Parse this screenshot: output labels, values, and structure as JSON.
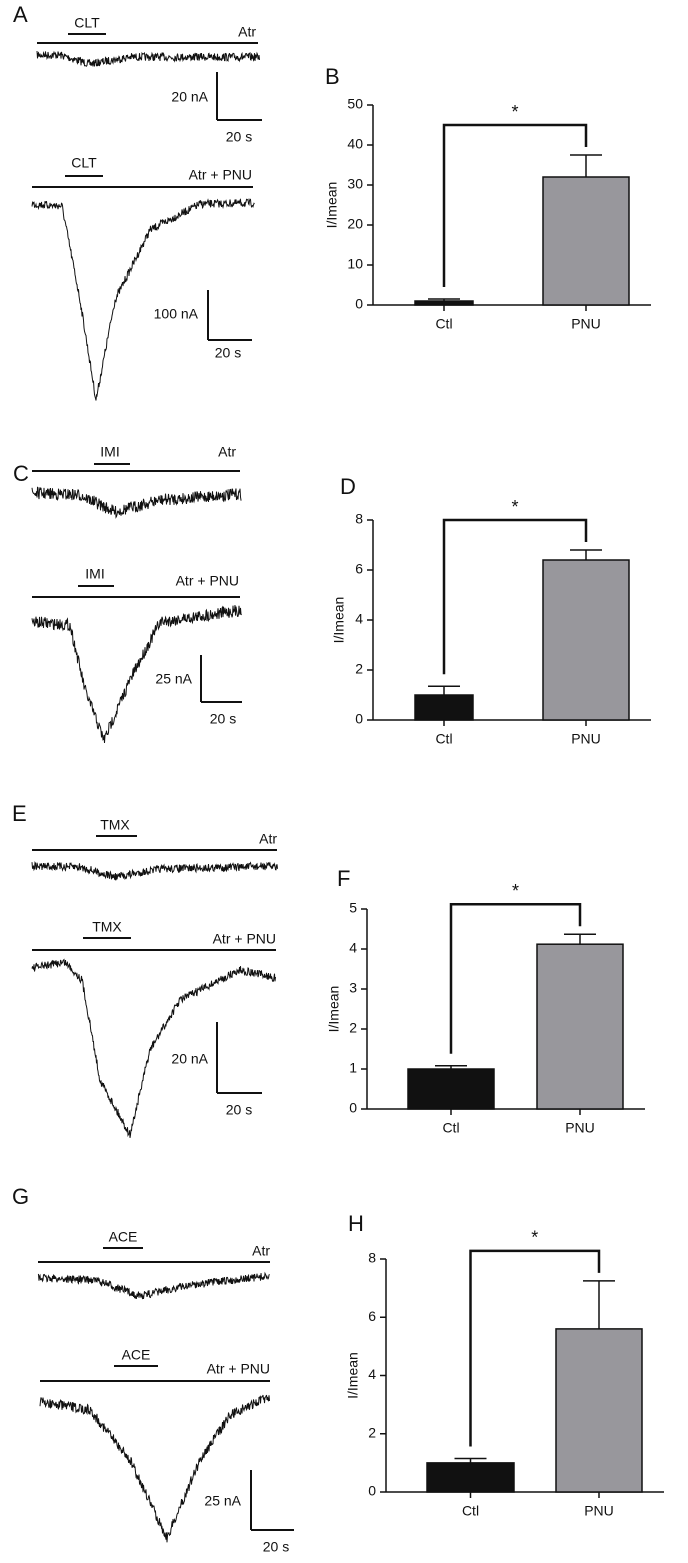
{
  "panels": [
    {
      "label": "A",
      "traces": [
        {
          "drug": "CLT",
          "condition": "Atr"
        },
        {
          "drug": "CLT",
          "condition": "Atr + PNU"
        }
      ],
      "scales": [
        {
          "current": "20 nA",
          "time": "20 s"
        },
        {
          "current": "100 nA",
          "time": "20 s"
        }
      ]
    },
    {
      "label": "C",
      "traces": [
        {
          "drug": "IMI",
          "condition": "Atr"
        },
        {
          "drug": "IMI",
          "condition": "Atr + PNU"
        }
      ],
      "scales": [
        {
          "current": "25 nA",
          "time": "20 s"
        }
      ]
    },
    {
      "label": "E",
      "traces": [
        {
          "drug": "TMX",
          "condition": "Atr"
        },
        {
          "drug": "TMX",
          "condition": "Atr + PNU"
        }
      ],
      "scales": [
        {
          "current": "20 nA",
          "time": "20 s"
        }
      ]
    },
    {
      "label": "G",
      "traces": [
        {
          "drug": "ACE",
          "condition": "Atr"
        },
        {
          "drug": "ACE",
          "condition": "Atr + PNU"
        }
      ],
      "scales": [
        {
          "current": "25 nA",
          "time": "20 s"
        }
      ]
    }
  ],
  "chart_data": [
    {
      "type": "bar",
      "label": "B",
      "ylabel": "I/Imean",
      "categories": [
        "Ctl",
        "PNU"
      ],
      "values": [
        1,
        32
      ],
      "errors": [
        0.5,
        5.5
      ],
      "colors": [
        "#111111",
        "#98979c"
      ],
      "ylim": [
        0,
        50
      ],
      "yticks": [
        0,
        10,
        20,
        30,
        40,
        50
      ],
      "annotation": "*"
    },
    {
      "type": "bar",
      "label": "D",
      "ylabel": "I/Imean",
      "categories": [
        "Ctl",
        "PNU"
      ],
      "values": [
        1,
        6.4
      ],
      "errors": [
        0.35,
        0.4
      ],
      "colors": [
        "#111111",
        "#98979c"
      ],
      "ylim": [
        0,
        8
      ],
      "yticks": [
        0,
        2,
        4,
        6,
        8
      ],
      "annotation": "*"
    },
    {
      "type": "bar",
      "label": "F",
      "ylabel": "I/Imean",
      "categories": [
        "Ctl",
        "PNU"
      ],
      "values": [
        1,
        4.12
      ],
      "errors": [
        0.08,
        0.25
      ],
      "colors": [
        "#111111",
        "#98979c"
      ],
      "ylim": [
        0,
        5
      ],
      "yticks": [
        0,
        1,
        2,
        3,
        4,
        5
      ],
      "annotation": "*"
    },
    {
      "type": "bar",
      "label": "H",
      "ylabel": "I/Imean",
      "categories": [
        "Ctl",
        "PNU"
      ],
      "values": [
        1,
        5.6
      ],
      "errors": [
        0.15,
        1.65
      ],
      "colors": [
        "#111111",
        "#98979c"
      ],
      "ylim": [
        0,
        8
      ],
      "yticks": [
        0,
        2,
        4,
        6,
        8
      ],
      "annotation": "*"
    }
  ]
}
